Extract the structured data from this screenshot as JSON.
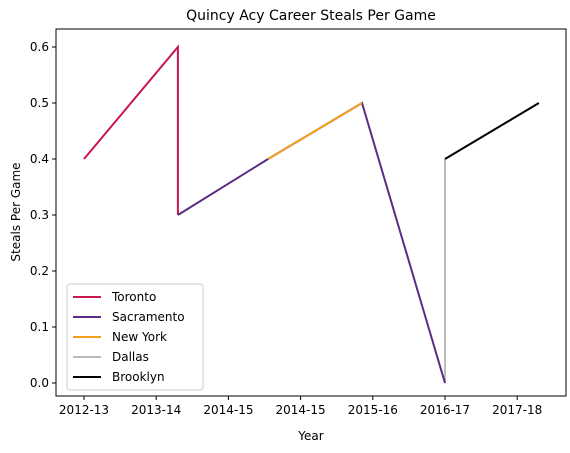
{
  "chart_data": {
    "type": "line",
    "title": "Quincy Acy Career Steals Per Game",
    "xlabel": "Year",
    "ylabel": "Steals Per Game",
    "x_ticks": [
      "2012-13",
      "2013-14",
      "2014-15",
      "2014-15",
      "2015-16",
      "2016-17",
      "2017-18"
    ],
    "ylim": [
      -0.03,
      0.63
    ],
    "y_ticks": [
      "0.0",
      "0.1",
      "0.2",
      "0.3",
      "0.4",
      "0.5",
      "0.6"
    ],
    "grid": false,
    "legend_placement": "lower-left",
    "series": [
      {
        "name": "Toronto",
        "color": "#c8174b",
        "points": [
          {
            "x": 0,
            "y": 0.4
          },
          {
            "x": 1.3,
            "y": 0.6
          },
          {
            "x": 1.3,
            "y": 0.3
          }
        ]
      },
      {
        "name": "Sacramento",
        "color": "#5b2c83",
        "points": [
          {
            "x": 1.3,
            "y": 0.3
          },
          {
            "x": 2.55,
            "y": 0.4
          },
          {
            "x": 2.55,
            "y": 0.4
          },
          {
            "x": 3.85,
            "y": 0.5
          },
          {
            "x": 5,
            "y": 0.0
          }
        ]
      },
      {
        "name": "New York",
        "color": "#f49f1c",
        "points": [
          {
            "x": 2.55,
            "y": 0.4
          },
          {
            "x": 3.85,
            "y": 0.5
          }
        ]
      },
      {
        "name": "Dallas",
        "color": "#bbbbbb",
        "points": [
          {
            "x": 5,
            "y": 0.0
          },
          {
            "x": 5,
            "y": 0.4
          }
        ]
      },
      {
        "name": "Brooklyn",
        "color": "#000000",
        "points": [
          {
            "x": 5,
            "y": 0.4
          },
          {
            "x": 6.3,
            "y": 0.5
          }
        ]
      }
    ]
  }
}
